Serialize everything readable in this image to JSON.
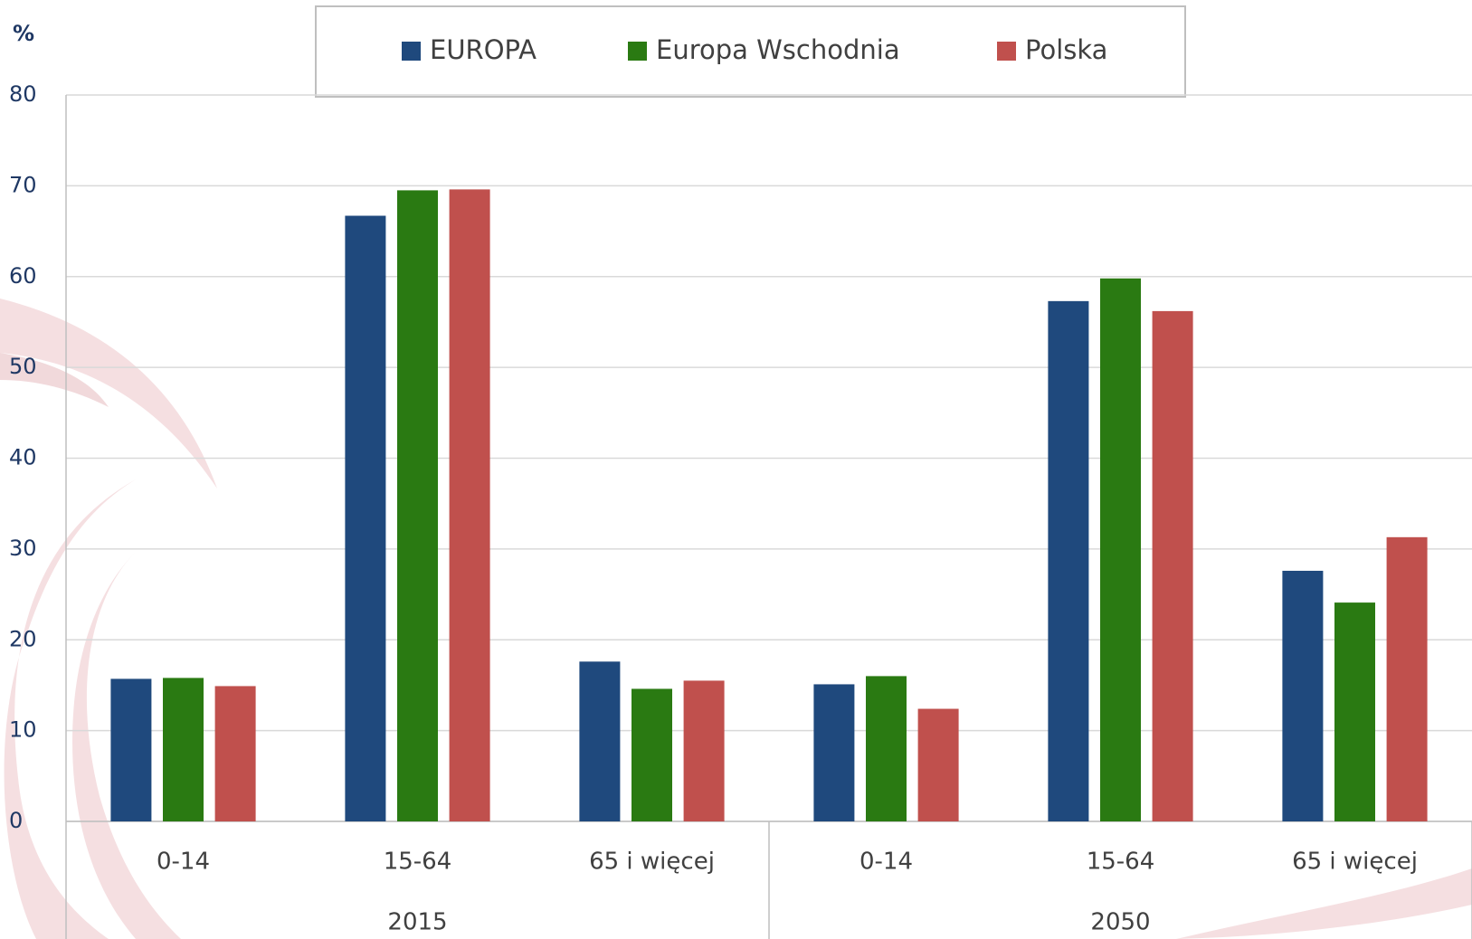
{
  "chart_data": {
    "type": "bar",
    "y_label": "%",
    "categories": [
      "0-14",
      "15-64",
      "65 i więcej",
      "0-14",
      "15-64",
      "65 i więcej"
    ],
    "groups": [
      "2015",
      "2050"
    ],
    "series": [
      {
        "name": "EUROPA",
        "color": "#1f497d",
        "values": [
          15.7,
          66.7,
          17.6,
          15.1,
          57.3,
          27.6
        ]
      },
      {
        "name": "Europa Wschodnia",
        "color": "#2a7a12",
        "values": [
          15.8,
          69.5,
          14.6,
          16.0,
          59.8,
          24.1
        ]
      },
      {
        "name": "Polska",
        "color": "#c0504d",
        "values": [
          14.9,
          69.6,
          15.5,
          12.4,
          56.2,
          31.3
        ]
      }
    ],
    "ylim": [
      0,
      80
    ],
    "yticks": [
      0,
      10,
      20,
      30,
      40,
      50,
      60,
      70,
      80
    ],
    "grid": true
  }
}
